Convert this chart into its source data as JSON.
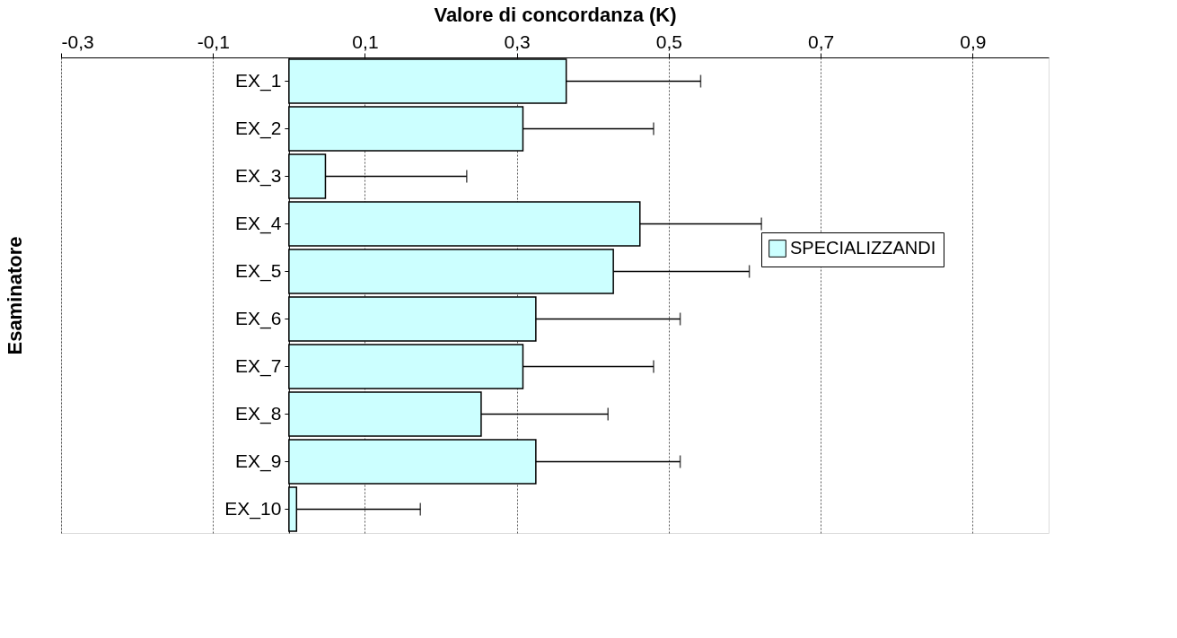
{
  "chart_data": {
    "type": "bar",
    "orientation": "horizontal",
    "xlabel": "Valore di concordanza (K)",
    "ylabel": "Esaminatore",
    "categories": [
      "EX_1",
      "EX_2",
      "EX_3",
      "EX_4",
      "EX_5",
      "EX_6",
      "EX_7",
      "EX_8",
      "EX_9",
      "EX_10"
    ],
    "series": [
      {
        "name": "SPECIALIZZANDI",
        "color": "#ccffff",
        "values": [
          0.365,
          0.308,
          0.048,
          0.462,
          0.427,
          0.325,
          0.308,
          0.253,
          0.325,
          0.01
        ],
        "errors": [
          [
            0.365,
            0.542
          ],
          [
            0.308,
            0.48
          ],
          [
            0.048,
            0.234
          ],
          [
            0.462,
            0.622
          ],
          [
            0.427,
            0.606
          ],
          [
            0.325,
            0.515
          ],
          [
            0.308,
            0.48
          ],
          [
            0.253,
            0.42
          ],
          [
            0.325,
            0.515
          ],
          [
            0.01,
            0.173
          ]
        ]
      }
    ],
    "xlim": [
      -0.3,
      1.0
    ],
    "xticks": [
      {
        "value": -0.3,
        "label": "-0,3"
      },
      {
        "value": -0.1,
        "label": "-0,1"
      },
      {
        "value": 0.1,
        "label": "0,1"
      },
      {
        "value": 0.3,
        "label": "0,3"
      },
      {
        "value": 0.5,
        "label": "0,5"
      },
      {
        "value": 0.7,
        "label": "0,7"
      },
      {
        "value": 0.9,
        "label": "0,9"
      }
    ],
    "grid": "x",
    "legend": "right"
  }
}
